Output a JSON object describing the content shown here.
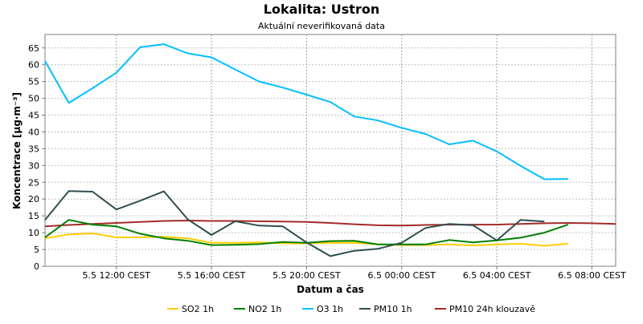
{
  "colors": {
    "SO2 1h": "#ffcc00",
    "NO2 1h": "#008000",
    "O3 1h": "#00bfff",
    "PM10 1h": "#2f4f4f",
    "PM10 24h klouzavě": "#a52a2a",
    "grid": "#c0c0c0",
    "axis": "#808080",
    "text": "#000000"
  },
  "chart_data": {
    "type": "line",
    "title": "Lokalita: Ustron",
    "subtitle": "Aktuální neverifikovaná data",
    "xlabel": "Datum a čas",
    "ylabel": "Koncentrace [µg·m⁻³]",
    "ylim": [
      0,
      69
    ],
    "yticks": [
      0,
      5,
      10,
      15,
      20,
      25,
      30,
      35,
      40,
      45,
      50,
      55,
      60,
      65
    ],
    "xlim": [
      "2024-05-05 09:00",
      "2024-05-06 09:00"
    ],
    "xticks": [
      {
        "x": "2024-05-05 12:00",
        "label": "5.5 12:00 CEST"
      },
      {
        "x": "2024-05-05 16:00",
        "label": "5.5 16:00 CEST"
      },
      {
        "x": "2024-05-05 20:00",
        "label": "5.5 20:00 CEST"
      },
      {
        "x": "2024-05-06 00:00",
        "label": "6.5 00:00 CEST"
      },
      {
        "x": "2024-05-06 04:00",
        "label": "6.5 04:00 CEST"
      },
      {
        "x": "2024-05-06 08:00",
        "label": "6.5 08:00 CEST"
      }
    ],
    "x": [
      "2024-05-05 09:00",
      "2024-05-05 10:00",
      "2024-05-05 11:00",
      "2024-05-05 12:00",
      "2024-05-05 13:00",
      "2024-05-05 14:00",
      "2024-05-05 15:00",
      "2024-05-05 16:00",
      "2024-05-05 17:00",
      "2024-05-05 18:00",
      "2024-05-05 19:00",
      "2024-05-05 20:00",
      "2024-05-05 21:00",
      "2024-05-05 22:00",
      "2024-05-05 23:00",
      "2024-05-06 00:00",
      "2024-05-06 01:00",
      "2024-05-06 02:00",
      "2024-05-06 03:00",
      "2024-05-06 04:00",
      "2024-05-06 05:00",
      "2024-05-06 06:00",
      "2024-05-06 07:00",
      "2024-05-06 08:00",
      "2024-05-06 09:00"
    ],
    "grid": true,
    "legend_position": "bottom",
    "series": [
      {
        "name": "SO2 1h",
        "values": [
          8.3,
          9.5,
          9.8,
          8.6,
          8.6,
          8.8,
          8.3,
          7.0,
          7.0,
          7.1,
          6.8,
          6.8,
          7.0,
          7.0,
          6.5,
          6.3,
          6.3,
          6.5,
          6.2,
          6.5,
          6.7,
          6.1,
          6.7,
          null,
          null
        ]
      },
      {
        "name": "NO2 1h",
        "values": [
          8.6,
          13.8,
          12.4,
          11.9,
          9.7,
          8.3,
          7.6,
          6.3,
          6.4,
          6.6,
          7.2,
          7.0,
          7.5,
          7.6,
          6.5,
          6.5,
          6.5,
          7.8,
          7.1,
          7.7,
          8.5,
          10.0,
          12.4,
          null,
          null
        ]
      },
      {
        "name": "O3 1h",
        "values": [
          61.1,
          48.6,
          53.0,
          57.6,
          65.2,
          66.1,
          63.4,
          62.2,
          58.6,
          55.0,
          53.2,
          51.1,
          48.9,
          44.6,
          43.4,
          41.2,
          39.4,
          36.3,
          37.4,
          34.2,
          29.9,
          25.9,
          26.0,
          null,
          null
        ]
      },
      {
        "name": "PM10 1h",
        "values": [
          13.8,
          22.4,
          22.2,
          16.9,
          19.5,
          22.3,
          14.0,
          9.3,
          13.4,
          12.1,
          11.9,
          7.1,
          3.0,
          4.6,
          5.2,
          7.0,
          11.4,
          12.6,
          12.2,
          7.7,
          13.8,
          13.3,
          null,
          null,
          null
        ]
      },
      {
        "name": "PM10 24h klouzavě",
        "values": [
          11.9,
          12.3,
          12.6,
          12.9,
          13.2,
          13.5,
          13.6,
          13.5,
          13.5,
          13.4,
          13.3,
          13.2,
          12.9,
          12.5,
          12.2,
          12.1,
          12.3,
          12.4,
          12.4,
          12.4,
          12.6,
          12.8,
          12.9,
          12.8,
          12.6
        ]
      }
    ]
  }
}
